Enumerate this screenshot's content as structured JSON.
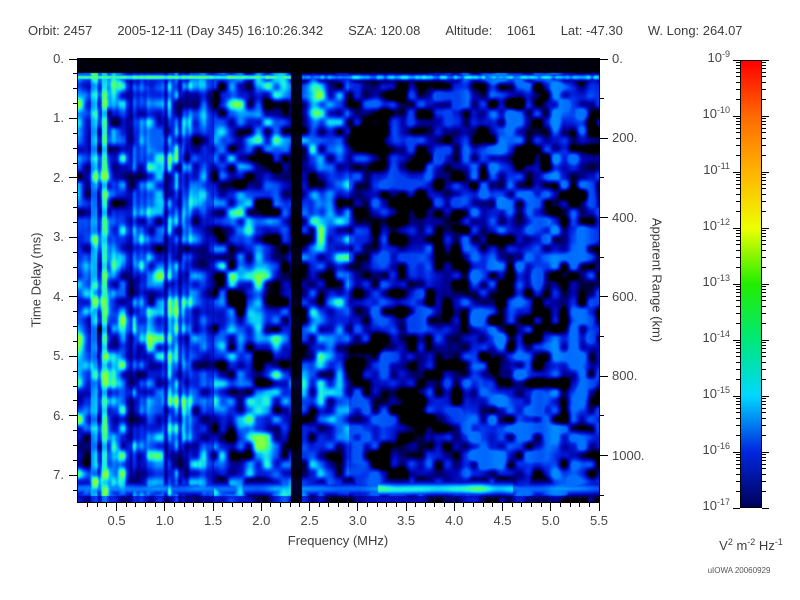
{
  "header": {
    "fields": [
      "Orbit: 2457",
      "2005-12-11 (Day 345) 16:10:26.342",
      "SZA: 120.08",
      "Altitude:    1061",
      "Lat: -47.30",
      "W. Long: 264.07"
    ]
  },
  "footer": {
    "attribution": "uIOWA 20060929"
  },
  "chart_data": {
    "type": "heatmap",
    "description": "Radar sounder ionogram: received spectral density vs frequency (MHz) and time delay (ms); bright surface reflection near 7.2 ms, transmitter gap near 2.35 MHz, strong low-frequency ionospheric echoes at left",
    "x_axis": {
      "label": "Frequency (MHz)",
      "min": 0.1,
      "max": 5.5,
      "minor_tick_step": 0.1,
      "major_ticks": [
        {
          "v": 0.5,
          "label": "0.5"
        },
        {
          "v": 1.0,
          "label": "1.0"
        },
        {
          "v": 1.5,
          "label": "1.5"
        },
        {
          "v": 2.0,
          "label": "2.0"
        },
        {
          "v": 2.5,
          "label": "2.5"
        },
        {
          "v": 3.0,
          "label": "3.0"
        },
        {
          "v": 3.5,
          "label": "3.5"
        },
        {
          "v": 4.0,
          "label": "4.0"
        },
        {
          "v": 4.5,
          "label": "4.5"
        },
        {
          "v": 5.0,
          "label": "5.0"
        },
        {
          "v": 5.5,
          "label": "5.5"
        }
      ]
    },
    "y_axis": {
      "label": "Time Delay (ms)",
      "min": 0,
      "max": 7.45,
      "direction": "down",
      "minor_tick_step": 0.25,
      "major_ticks": [
        {
          "v": 0,
          "label": "0."
        },
        {
          "v": 1,
          "label": "1."
        },
        {
          "v": 2,
          "label": "2."
        },
        {
          "v": 3,
          "label": "3."
        },
        {
          "v": 4,
          "label": "4."
        },
        {
          "v": 5,
          "label": "5."
        },
        {
          "v": 6,
          "label": "6."
        },
        {
          "v": 7,
          "label": "7."
        }
      ]
    },
    "y2_axis": {
      "label": "Apparent Range (km)",
      "min": 0,
      "max": 1117,
      "minor_tick_step": 100,
      "major_ticks": [
        {
          "v": 0,
          "label": "0."
        },
        {
          "v": 200,
          "label": "200."
        },
        {
          "v": 400,
          "label": "400."
        },
        {
          "v": 600,
          "label": "600."
        },
        {
          "v": 800,
          "label": "800."
        },
        {
          "v": 1000,
          "label": "1000."
        }
      ]
    },
    "colorbar": {
      "unit_segments": [
        {
          "text": "V"
        },
        {
          "text": "2",
          "sup": true
        },
        {
          "text": " m"
        },
        {
          "text": "-2",
          "sup": true
        },
        {
          "text": " Hz"
        },
        {
          "text": "-1",
          "sup": true
        }
      ],
      "max_exponent": -9,
      "min_exponent": -17,
      "major_tick_exponents": [
        -9,
        -10,
        -11,
        -12,
        -13,
        -14,
        -15,
        -16,
        -17
      ],
      "gradient_stops": [
        {
          "exp": -9,
          "color": "#ff0000"
        },
        {
          "exp": -10,
          "color": "#ff6a00"
        },
        {
          "exp": -11,
          "color": "#ffb400"
        },
        {
          "exp": -12,
          "color": "#eeff00"
        },
        {
          "exp": -13,
          "color": "#22ee00"
        },
        {
          "exp": -14,
          "color": "#00e878"
        },
        {
          "exp": -15,
          "color": "#00d8ff"
        },
        {
          "exp": -16,
          "color": "#0028e0"
        },
        {
          "exp": -17,
          "color": "#000058"
        }
      ]
    },
    "heatmap": {
      "seed": 20051211,
      "colormap": [
        [
          0.0,
          "#000000"
        ],
        [
          0.05,
          "#00003a"
        ],
        [
          0.2,
          "#0000a8"
        ],
        [
          0.38,
          "#0028e8"
        ],
        [
          0.55,
          "#0070ff"
        ],
        [
          0.68,
          "#00c0ff"
        ],
        [
          0.8,
          "#20f0e0"
        ],
        [
          0.9,
          "#40ff80"
        ],
        [
          1.0,
          "#80ff40"
        ]
      ],
      "features": {
        "top_black_band_ms": 0.22,
        "first_echo_ms": 0.3,
        "surface_echo_ms": 7.22,
        "interference_gap_mhz": [
          2.3,
          2.42
        ],
        "bright_streak_max_mhz": 1.5,
        "diffuse_left_max_mhz": 2.9,
        "surface_green_mhz": [
          3.2,
          4.6
        ]
      }
    }
  }
}
